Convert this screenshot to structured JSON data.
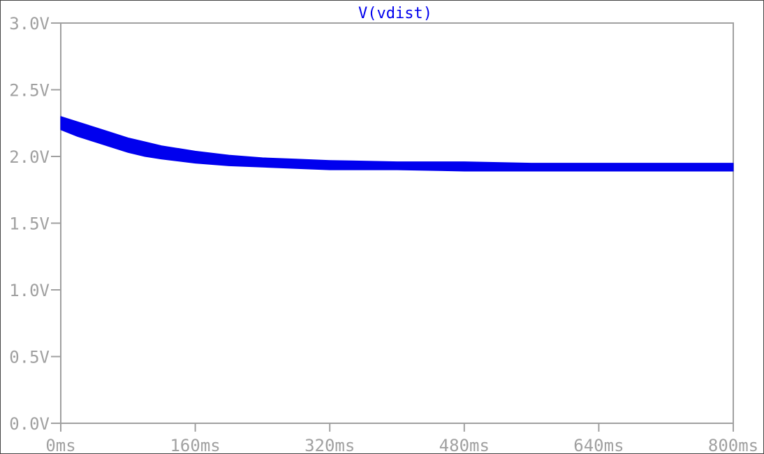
{
  "chart_data": {
    "type": "line",
    "title": "",
    "xlabel": "",
    "ylabel": "",
    "xlim": [
      0,
      800
    ],
    "ylim": [
      0.0,
      3.0
    ],
    "x_tick_values": [
      0,
      160,
      320,
      480,
      640,
      800
    ],
    "x_tick_labels": [
      "0ms",
      "160ms",
      "320ms",
      "480ms",
      "640ms",
      "800ms"
    ],
    "y_tick_values": [
      0.0,
      0.5,
      1.0,
      1.5,
      2.0,
      2.5,
      3.0
    ],
    "y_tick_labels": [
      "0.0V",
      "0.5V",
      "1.0V",
      "1.5V",
      "2.0V",
      "2.5V",
      "3.0V"
    ],
    "grid": false,
    "series": [
      {
        "name": "V(vdist)",
        "color": "#0000ee",
        "x": [
          0,
          20,
          40,
          60,
          80,
          100,
          120,
          160,
          200,
          240,
          280,
          320,
          400,
          480,
          560,
          640,
          720,
          800
        ],
        "y_upper": [
          2.3,
          2.26,
          2.22,
          2.18,
          2.14,
          2.11,
          2.08,
          2.04,
          2.01,
          1.99,
          1.98,
          1.97,
          1.96,
          1.96,
          1.95,
          1.95,
          1.95,
          1.95
        ],
        "y_lower": [
          2.2,
          2.15,
          2.11,
          2.07,
          2.03,
          2.0,
          1.98,
          1.95,
          1.93,
          1.92,
          1.91,
          1.9,
          1.9,
          1.89,
          1.89,
          1.89,
          1.89,
          1.89
        ]
      }
    ]
  }
}
